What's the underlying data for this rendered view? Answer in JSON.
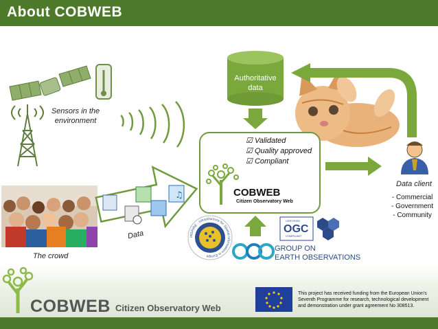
{
  "header": {
    "title": "About COBWEB"
  },
  "sensors": {
    "label_line1": "Sensors in the",
    "label_line2": "environment"
  },
  "crowd": {
    "label": "The crowd"
  },
  "data_arrow": {
    "label": "Data"
  },
  "database": {
    "label_line1": "Authoritative",
    "label_line2": "data"
  },
  "hub": {
    "checks": [
      "Validated",
      "Quality approved",
      "Compliant"
    ],
    "logo_title": "COBWEB",
    "logo_subtitle": "Citizen Observatory Web"
  },
  "client": {
    "label": "Data client",
    "types": [
      "- Commercial",
      "- Government",
      "- Community"
    ]
  },
  "standards": {
    "inspire_text": "INSPIRE · Infrastructure for Spatial Information in Europe",
    "ogc_small": "CERTIFIED",
    "ogc_big": "OGC",
    "ogc_compliant": "COMPLIANT",
    "geo_line1": "GROUP ON",
    "geo_line2": "EARTH OBSERVATIONS"
  },
  "footer": {
    "logo_title": "COBWEB",
    "logo_subtitle": "Citizen Observatory Web",
    "eu_text": "This project has received funding from the European Union's Seventh Programme for research, technological development and demonstration under grant agreement No 308513."
  },
  "colors": {
    "brand_green": "#4d7a2a",
    "arrow_green": "#7aa83c",
    "outline_green": "#5f8f2e",
    "geo_blue": "#2b4a87"
  }
}
